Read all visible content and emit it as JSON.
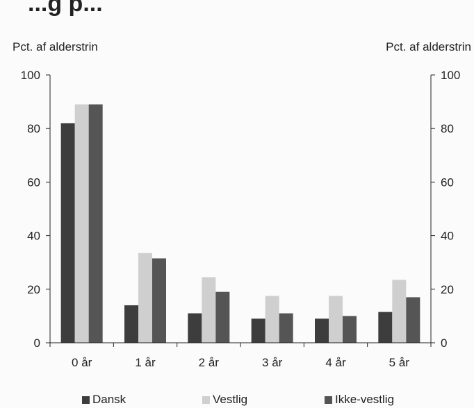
{
  "title_fragment": "...g p...",
  "chart_data": {
    "type": "bar",
    "categories": [
      "0 år",
      "1 år",
      "2 år",
      "3 år",
      "4 år",
      "5 år"
    ],
    "series": [
      {
        "name": "Dansk",
        "values": [
          82,
          14,
          11,
          9,
          9,
          11.5
        ],
        "color": "#3d3d3d"
      },
      {
        "name": "Vestlig",
        "values": [
          89,
          33.5,
          24.5,
          17.5,
          17.5,
          23.5
        ],
        "color": "#cfcfcf"
      },
      {
        "name": "Ikke-vestlig",
        "values": [
          89,
          31.5,
          19,
          11,
          10,
          17
        ],
        "color": "#555555"
      }
    ],
    "ylabel_left": "Pct. af alderstrin",
    "ylabel_right": "Pct. af alderstrin",
    "ylim": [
      0,
      100
    ],
    "yticks": [
      0,
      20,
      40,
      60,
      80,
      100
    ],
    "grid": false,
    "legend_position": "bottom"
  }
}
